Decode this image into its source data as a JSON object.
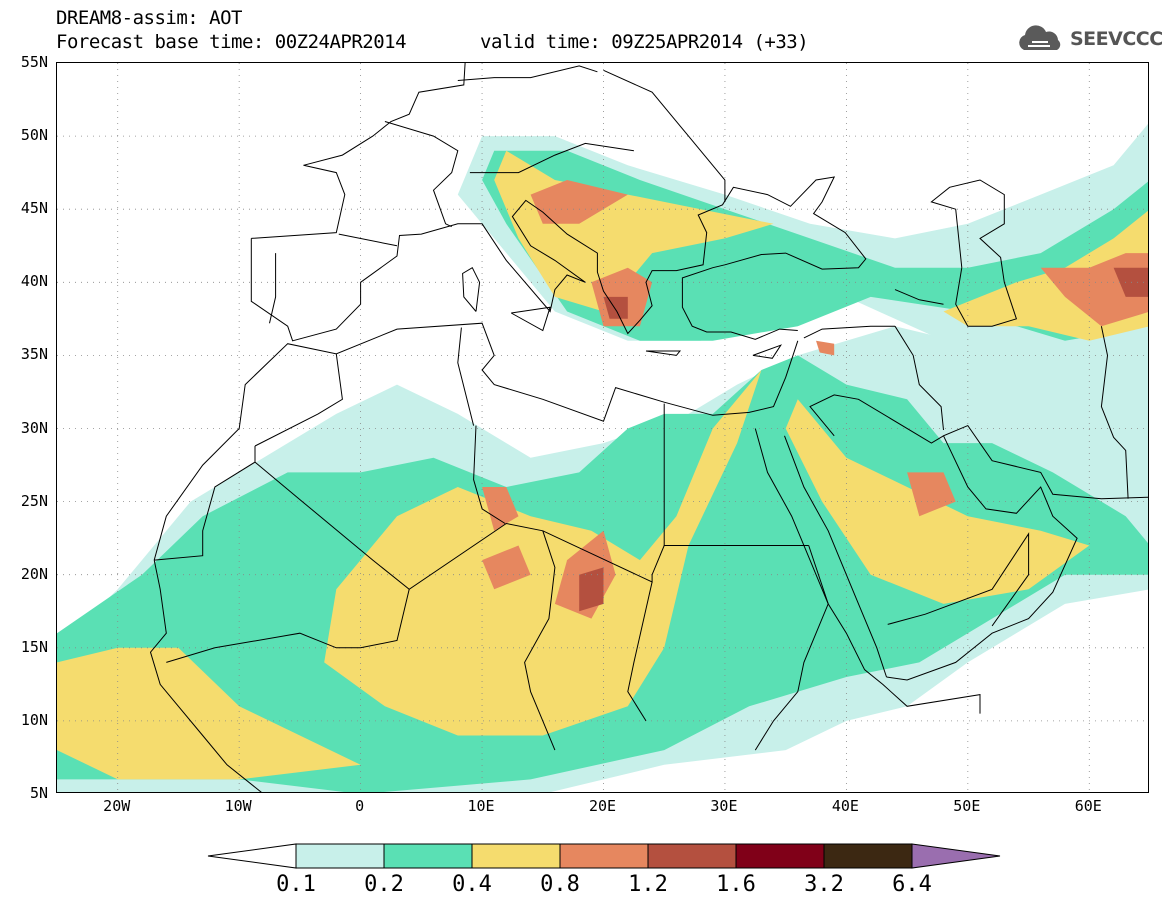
{
  "header": {
    "title_line1": "DREAM8-assim: AOT",
    "title_line2": "Forecast base time: 00Z24APR2014",
    "valid_time": "valid time: 09Z25APR2014 (+33)",
    "logo_text": "SEEVCCC",
    "logo_icon": "cloud-icon"
  },
  "map": {
    "type": "filled-contour-map",
    "variable": "AOT",
    "projection": "lat-lon",
    "lon_range": [
      -25,
      65
    ],
    "lat_range": [
      5,
      55
    ],
    "lat_labels": [
      "55N",
      "50N",
      "45N",
      "40N",
      "35N",
      "30N",
      "25N",
      "20N",
      "15N",
      "10N",
      "5N"
    ],
    "lon_labels": [
      "20W",
      "10W",
      "0",
      "10E",
      "20E",
      "30E",
      "40E",
      "50E",
      "60E"
    ],
    "gridlines": "dotted",
    "coastlines": true,
    "country_borders": true
  },
  "colorbar": {
    "labels": [
      "0.1",
      "0.2",
      "0.4",
      "0.8",
      "1.2",
      "1.6",
      "3.2",
      "6.4"
    ],
    "colors": [
      "#ffffff",
      "#c8f0ea",
      "#5ae0b4",
      "#f5dc6e",
      "#e6875f",
      "#b4503f",
      "#800018",
      "#3c2812",
      "#9a6eaf"
    ],
    "extend": "both"
  }
}
